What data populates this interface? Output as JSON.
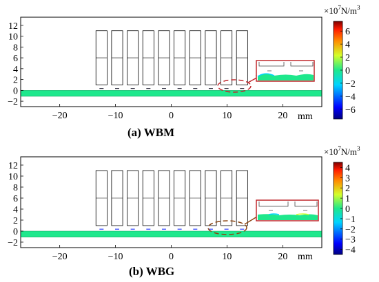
{
  "chart_data": [
    {
      "type": "heatmap",
      "caption": "(a) WBM",
      "x_unit": "mm",
      "xlim": [
        -27,
        27
      ],
      "ylim": [
        -3,
        13.5
      ],
      "x_ticks": [
        "−20",
        "−10",
        "0",
        "10",
        "20"
      ],
      "x_tick_values": [
        -20,
        -10,
        0,
        10,
        20
      ],
      "y_ticks": [
        "−2",
        "0",
        "2",
        "4",
        "6",
        "8",
        "10",
        "12"
      ],
      "y_tick_values": [
        -2,
        0,
        2,
        4,
        6,
        8,
        10,
        12
      ],
      "colorbar": {
        "unit_prefix": "×10",
        "unit_exp": "7",
        "unit_suffix": "N/m",
        "unit_suffix_exp": "3",
        "range": [
          -7.5,
          7.5
        ],
        "ticks": [
          "6",
          "4",
          "2",
          "0",
          "−2",
          "−4",
          "−6"
        ],
        "tick_values": [
          6,
          4,
          2,
          0,
          -2,
          -4,
          -6
        ]
      },
      "magnets": {
        "count": 10,
        "x_centers": [
          -12.5,
          -9.7,
          -6.9,
          -4.1,
          -1.3,
          1.5,
          4.3,
          7.1,
          9.9,
          12.7
        ],
        "width": 2.0,
        "y_range": [
          1,
          11
        ]
      },
      "plate": {
        "y_range": [
          -1.1,
          0
        ]
      },
      "zoom_inset": true
    },
    {
      "type": "heatmap",
      "caption": "(b) WBG",
      "x_unit": "mm",
      "xlim": [
        -27,
        27
      ],
      "ylim": [
        -3,
        13.5
      ],
      "x_ticks": [
        "−20",
        "−10",
        "0",
        "10",
        "20"
      ],
      "x_tick_values": [
        -20,
        -10,
        0,
        10,
        20
      ],
      "y_ticks": [
        "−2",
        "0",
        "2",
        "4",
        "6",
        "8",
        "10",
        "12"
      ],
      "y_tick_values": [
        -2,
        0,
        2,
        4,
        6,
        8,
        10,
        12
      ],
      "colorbar": {
        "unit_prefix": "×10",
        "unit_exp": "7",
        "unit_suffix": "N/m",
        "unit_suffix_exp": "3",
        "range": [
          -4.5,
          4.5
        ],
        "ticks": [
          "4",
          "3",
          "2",
          "1",
          "0",
          "−1",
          "−2",
          "−3",
          "−4"
        ],
        "tick_values": [
          4,
          3,
          2,
          1,
          0,
          -1,
          -2,
          -3,
          -4
        ]
      },
      "magnets": {
        "count": 10,
        "x_centers": [
          -12.5,
          -9.7,
          -6.9,
          -4.1,
          -1.3,
          1.5,
          4.3,
          7.1,
          9.9,
          12.7
        ],
        "width": 2.0,
        "y_range": [
          1,
          11
        ]
      },
      "plate": {
        "y_range": [
          -1.1,
          0
        ]
      },
      "zoom_inset": true
    }
  ],
  "colors": {
    "plate": "#1ee88c",
    "frame": "#000000",
    "inset_border": "#c0282d",
    "ellipse_a": "#c0282d",
    "ellipse_b": "#8b4513"
  }
}
